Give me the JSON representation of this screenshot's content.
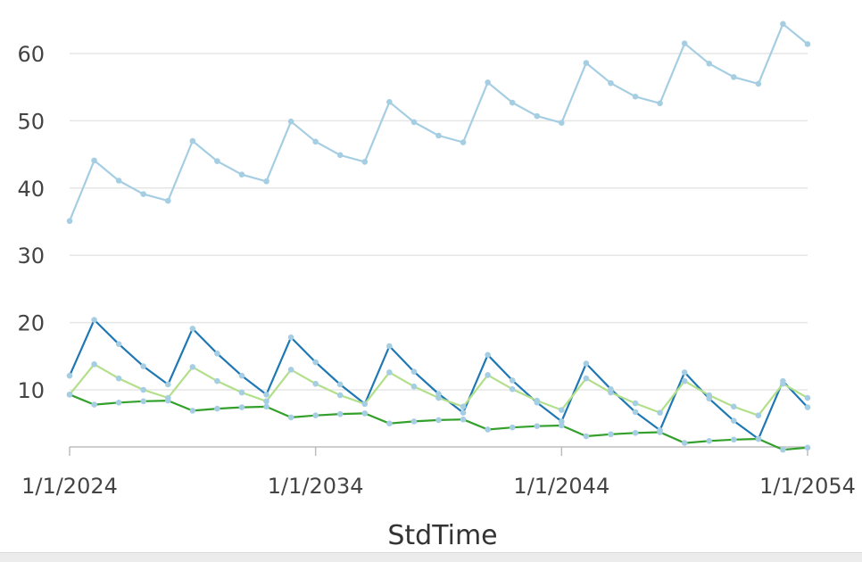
{
  "chart_data": {
    "type": "line",
    "xlabel": "StdTime",
    "ylabel": "",
    "ylim": [
      0,
      65
    ],
    "xlim_years": [
      2024,
      2054
    ],
    "yticks": [
      10,
      20,
      30,
      40,
      50,
      60
    ],
    "xticks": [
      {
        "year": 2024,
        "label": "1/1/2024"
      },
      {
        "year": 2034,
        "label": "1/1/2034"
      },
      {
        "year": 2044,
        "label": "1/1/2044"
      },
      {
        "year": 2054,
        "label": "1/1/2054"
      }
    ],
    "grid": true,
    "legend": "none",
    "x_years": [
      2024,
      2025,
      2026,
      2027,
      2028,
      2029,
      2030,
      2031,
      2032,
      2033,
      2034,
      2035,
      2036,
      2037,
      2038,
      2039,
      2040,
      2041,
      2042,
      2043,
      2044,
      2045,
      2046,
      2047,
      2048,
      2049,
      2050,
      2051,
      2052,
      2053,
      2054
    ],
    "series": [
      {
        "color": "#a6cee3",
        "values": [
          35.1,
          44.1,
          41.1,
          39.1,
          38.1,
          47.0,
          44.0,
          42.0,
          41.0,
          49.9,
          46.9,
          44.9,
          43.9,
          52.8,
          49.8,
          47.8,
          46.8,
          55.7,
          52.7,
          50.7,
          49.7,
          58.6,
          55.6,
          53.6,
          52.6,
          61.5,
          58.5,
          56.5,
          55.5,
          64.4,
          61.4
        ]
      },
      {
        "color": "#1f78b4",
        "values": [
          12.1,
          20.4,
          16.8,
          13.5,
          10.8,
          19.1,
          15.4,
          12.1,
          9.3,
          17.8,
          14.1,
          10.8,
          7.9,
          16.5,
          12.7,
          9.4,
          6.6,
          15.2,
          11.4,
          8.1,
          5.3,
          13.9,
          10.1,
          6.7,
          4.0,
          12.6,
          8.7,
          5.4,
          2.7,
          11.3,
          7.4
        ]
      },
      {
        "color": "#b2df8a",
        "values": [
          9.3,
          13.8,
          11.7,
          10.0,
          8.8,
          13.4,
          11.3,
          9.6,
          8.3,
          13.0,
          10.9,
          9.2,
          7.9,
          12.6,
          10.5,
          8.8,
          7.5,
          12.2,
          10.1,
          8.4,
          7.0,
          11.7,
          9.6,
          8.0,
          6.6,
          11.3,
          9.2,
          7.5,
          6.2,
          10.9,
          8.8
        ]
      },
      {
        "color": "#33a02c",
        "values": [
          9.3,
          7.8,
          8.1,
          8.3,
          8.4,
          6.9,
          7.2,
          7.4,
          7.5,
          5.9,
          6.2,
          6.4,
          6.5,
          5.0,
          5.3,
          5.5,
          5.6,
          4.1,
          4.4,
          4.6,
          4.7,
          3.1,
          3.4,
          3.6,
          3.7,
          2.1,
          2.4,
          2.6,
          2.7,
          1.1,
          1.4
        ]
      }
    ]
  }
}
